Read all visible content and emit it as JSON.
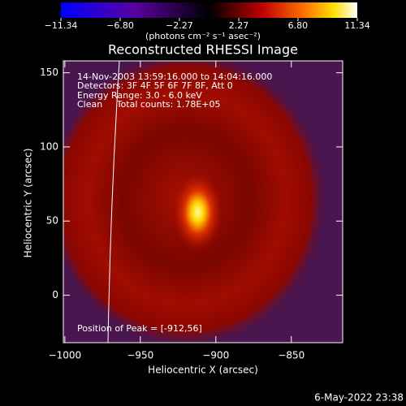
{
  "chart_data": {
    "type": "heatmap",
    "title": "Reconstructed RHESSI Image",
    "colorbar": {
      "label": "(photons cm⁻² s⁻¹ asec⁻²)",
      "lim": [
        -11.34,
        11.34
      ],
      "ticks": [
        {
          "value": -11.34,
          "label": "−11.34"
        },
        {
          "value": -6.8,
          "label": "−6.80"
        },
        {
          "value": -2.27,
          "label": "−2.27"
        },
        {
          "value": 2.27,
          "label": "2.27"
        },
        {
          "value": 6.8,
          "label": "6.80"
        },
        {
          "value": 11.34,
          "label": "11.34"
        }
      ]
    },
    "xlabel": "Heliocentric X (arcsec)",
    "ylabel": "Heliocentric Y (arcsec)",
    "xlim": [
      -1001,
      -816
    ],
    "ylim": [
      -32,
      158
    ],
    "xticks": [
      {
        "value": -1000,
        "label": "−1000"
      },
      {
        "value": -950,
        "label": "−950"
      },
      {
        "value": -900,
        "label": "−900"
      },
      {
        "value": -850,
        "label": "−850"
      }
    ],
    "yticks": [
      0,
      50,
      100,
      150
    ],
    "peak": [
      -912,
      56
    ],
    "annotations": [
      "14-Nov-2003 13:59:16.000 to 14:04:16.000",
      "Detectors: 3F 4F 5F 6F 7F 8F, Att 0",
      "Energy Range: 3.0 - 6.0 keV",
      "Clean     Total counts: 1.78E+05"
    ],
    "peak_label": "Position of Peak = [-912,56]",
    "footer": "6-May-2022 23:38"
  }
}
